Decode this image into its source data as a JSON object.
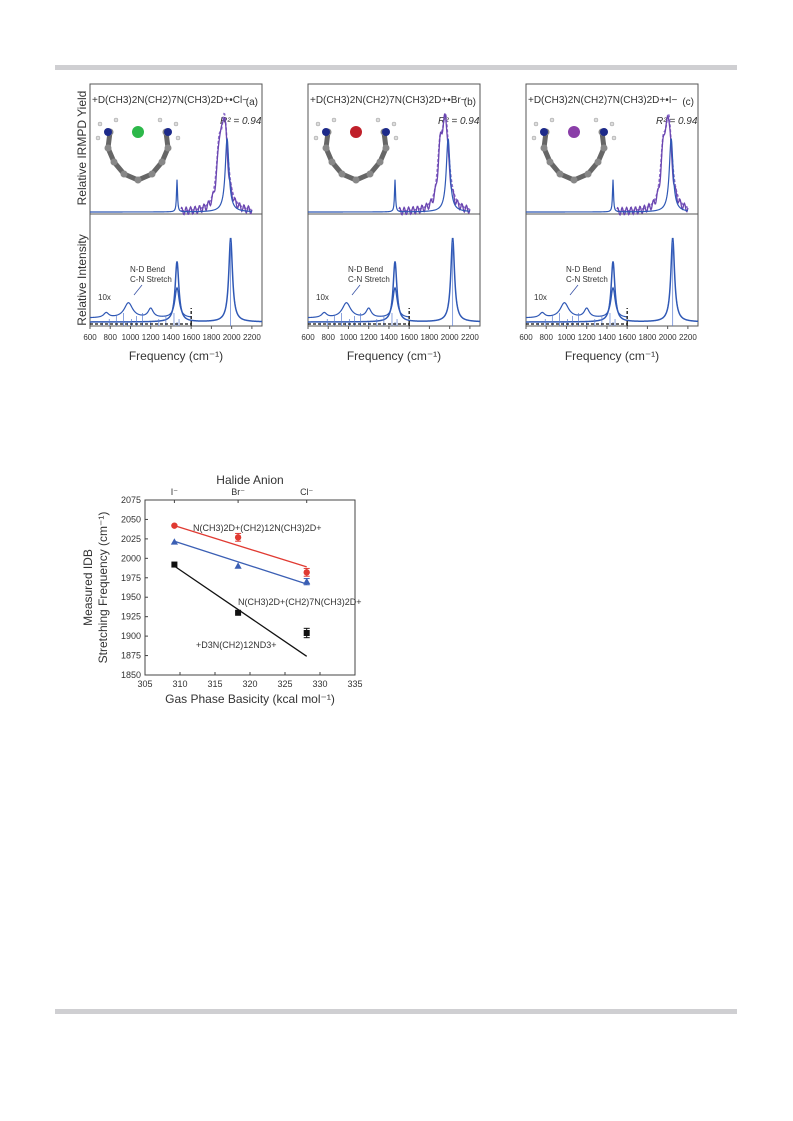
{
  "figure_top": {
    "y_label_upper": "Relative IRMPD Yield",
    "y_label_lower": "Relative Intensity",
    "panels": [
      {
        "id": "a",
        "label": "(a)",
        "title": "+D(CH3)2N(CH2)7N(CH3)2D+•Cl−",
        "r2": "R² = 0.94",
        "halide_color": "#2db84a",
        "annotation_bend": "N-D Bend",
        "annotation_stretch": "C-N Stretch",
        "mag": "10x",
        "xlabel": "Frequency (cm⁻¹)",
        "xticks": [
          "600",
          "800",
          "1000",
          "1200",
          "1400",
          "1600",
          "1800",
          "2000",
          "2200"
        ],
        "exp_peak_main": 1930,
        "calc_peak_main": 1990
      },
      {
        "id": "b",
        "label": "(b)",
        "title": "+D(CH3)2N(CH2)7N(CH3)2D+•Br−",
        "r2": "R² = 0.94",
        "halide_color": "#c0202a",
        "annotation_bend": "N-D Bend",
        "annotation_stretch": "C-N Stretch",
        "mag": "10x",
        "xlabel": "Frequency (cm⁻¹)",
        "xticks": [
          "600",
          "800",
          "1000",
          "1200",
          "1400",
          "1600",
          "1800",
          "2000",
          "2200"
        ],
        "exp_peak_main": 1960,
        "calc_peak_main": 2030
      },
      {
        "id": "c",
        "label": "(c)",
        "title": "+D(CH3)2N(CH2)7N(CH3)2D+•I−",
        "r2": "R² = 0.94",
        "halide_color": "#8a3ea8",
        "annotation_bend": "N-D Bend",
        "annotation_stretch": "C-N Stretch",
        "mag": "10x",
        "xlabel": "Frequency (cm⁻¹)",
        "xticks": [
          "600",
          "800",
          "1000",
          "1200",
          "1400",
          "1600",
          "1800",
          "2000",
          "2200"
        ],
        "exp_peak_main": 2010,
        "calc_peak_main": 2050
      }
    ]
  },
  "chart_data": {
    "type": "scatter",
    "title": "",
    "xlabel": "Gas Phase Basicity (kcal mol⁻¹)",
    "ylabel_line1": "Measured IDB",
    "ylabel_line2": "Stretching Frequency (cm⁻¹)",
    "xlim": [
      305,
      335
    ],
    "ylim": [
      1850,
      2075
    ],
    "xticks": [
      305,
      310,
      315,
      320,
      325,
      330,
      335
    ],
    "yticks": [
      1850,
      1875,
      1900,
      1925,
      1950,
      1975,
      2000,
      2025,
      2050,
      2075
    ],
    "top_axis_label": "Halide Anion",
    "top_ticks": [
      {
        "x": 309.2,
        "label": "I⁻"
      },
      {
        "x": 318.3,
        "label": "Br⁻"
      },
      {
        "x": 328.1,
        "label": "Cl⁻"
      }
    ],
    "series": [
      {
        "name": "N(CH3)2D+(CH2)12N(CH3)2D+",
        "color": "#e03a32",
        "marker": "circle",
        "x": [
          309.2,
          318.3,
          328.1
        ],
        "y": [
          2042,
          2027,
          1982
        ],
        "err": [
          0,
          5,
          5
        ],
        "fit": [
          [
            309.2,
            2042
          ],
          [
            328.1,
            1989
          ]
        ]
      },
      {
        "name": "N(CH3)2D+(CH2)7N(CH3)2D+",
        "color": "#3b5fb4",
        "marker": "triangle",
        "x": [
          309.2,
          318.3,
          328.1
        ],
        "y": [
          2021,
          1990,
          1970
        ],
        "err": [
          0,
          0,
          4
        ],
        "fit": [
          [
            309.2,
            2022
          ],
          [
            328.1,
            1967
          ]
        ]
      },
      {
        "name": "+D3N(CH2)12ND3+",
        "color": "#111111",
        "marker": "square",
        "x": [
          309.2,
          318.3,
          328.1
        ],
        "y": [
          1992,
          1930,
          1904
        ],
        "err": [
          0,
          0,
          6
        ],
        "fit": [
          [
            309.2,
            1990
          ],
          [
            328.1,
            1874
          ]
        ]
      }
    ]
  }
}
